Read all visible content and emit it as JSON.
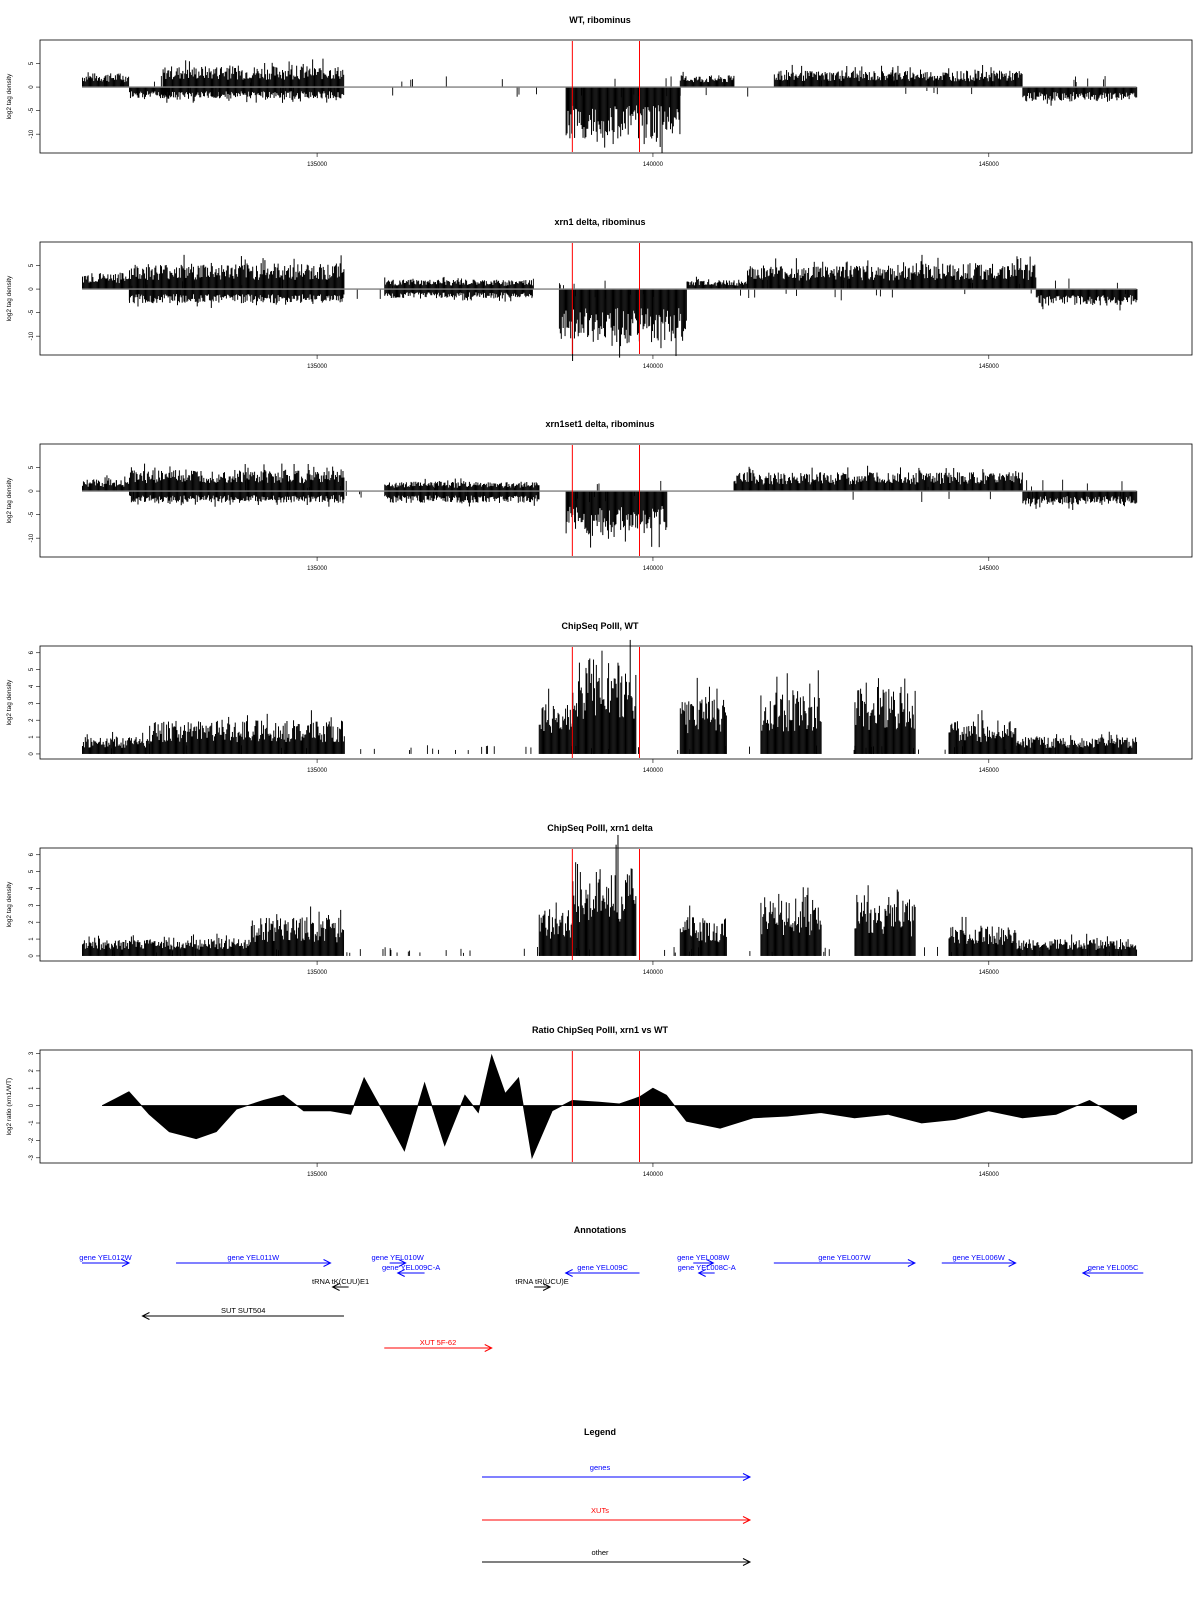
{
  "chart_data": [
    {
      "type": "bar",
      "title": "WT, ribominus",
      "ylabel": "log2 tag density",
      "xlim": [
        131500,
        147400
      ],
      "ylim": [
        -14,
        10
      ],
      "xticks": [
        "135000",
        "140000",
        "145000"
      ],
      "yticks": [
        "-10",
        "-5",
        "0",
        "5"
      ],
      "markers": [
        138800,
        139800
      ],
      "regions": [
        {
          "from": 131500,
          "to": 132200,
          "sign": "+",
          "amp": 3
        },
        {
          "from": 132200,
          "to": 132800,
          "sign": "-",
          "amp": 2.5
        },
        {
          "from": 132700,
          "to": 135400,
          "sign": "+",
          "amp": 4.5
        },
        {
          "from": 132700,
          "to": 135400,
          "sign": "-",
          "amp": 2.5
        },
        {
          "from": 138700,
          "to": 140400,
          "sign": "-",
          "amp": 11
        },
        {
          "from": 140400,
          "to": 141200,
          "sign": "+",
          "amp": 2.5
        },
        {
          "from": 141800,
          "to": 143600,
          "sign": "+",
          "amp": 3.5
        },
        {
          "from": 143500,
          "to": 145500,
          "sign": "+",
          "amp": 3.5
        },
        {
          "from": 145500,
          "to": 147200,
          "sign": "-",
          "amp": 3
        }
      ]
    },
    {
      "type": "bar",
      "title": "xrn1 delta, ribominus",
      "ylabel": "log2 tag density",
      "xlim": [
        131500,
        147400
      ],
      "ylim": [
        -14,
        10
      ],
      "xticks": [
        "135000",
        "140000",
        "145000"
      ],
      "yticks": [
        "-10",
        "-5",
        "0",
        "5"
      ],
      "markers": [
        138800,
        139800
      ],
      "regions": [
        {
          "from": 131500,
          "to": 132200,
          "sign": "+",
          "amp": 3.5
        },
        {
          "from": 132200,
          "to": 135400,
          "sign": "+",
          "amp": 5.5
        },
        {
          "from": 132200,
          "to": 135400,
          "sign": "-",
          "amp": 3
        },
        {
          "from": 136000,
          "to": 138200,
          "sign": "+",
          "amp": 2
        },
        {
          "from": 136000,
          "to": 138200,
          "sign": "-",
          "amp": 2
        },
        {
          "from": 138600,
          "to": 140500,
          "sign": "-",
          "amp": 11.5
        },
        {
          "from": 140500,
          "to": 141400,
          "sign": "+",
          "amp": 2
        },
        {
          "from": 141400,
          "to": 143900,
          "sign": "+",
          "amp": 5
        },
        {
          "from": 143900,
          "to": 145700,
          "sign": "+",
          "amp": 5.5
        },
        {
          "from": 145700,
          "to": 147200,
          "sign": "-",
          "amp": 3.5
        }
      ]
    },
    {
      "type": "bar",
      "title": "xrn1set1 delta, ribominus",
      "ylabel": "log2 tag density",
      "xlim": [
        131500,
        147400
      ],
      "ylim": [
        -14,
        10
      ],
      "xticks": [
        "135000",
        "140000",
        "145000"
      ],
      "yticks": [
        "-10",
        "-5",
        "0",
        "5"
      ],
      "markers": [
        138800,
        139800
      ],
      "regions": [
        {
          "from": 131500,
          "to": 132200,
          "sign": "+",
          "amp": 2.5
        },
        {
          "from": 132200,
          "to": 135400,
          "sign": "+",
          "amp": 4.5
        },
        {
          "from": 132200,
          "to": 135400,
          "sign": "-",
          "amp": 2.5
        },
        {
          "from": 136000,
          "to": 138300,
          "sign": "+",
          "amp": 2
        },
        {
          "from": 136000,
          "to": 138300,
          "sign": "-",
          "amp": 2.5
        },
        {
          "from": 138700,
          "to": 140200,
          "sign": "-",
          "amp": 9
        },
        {
          "from": 141200,
          "to": 143700,
          "sign": "+",
          "amp": 4
        },
        {
          "from": 143700,
          "to": 145500,
          "sign": "+",
          "amp": 4
        },
        {
          "from": 145500,
          "to": 147200,
          "sign": "-",
          "amp": 3
        }
      ]
    },
    {
      "type": "bar",
      "title": "ChipSeq PolII, WT",
      "ylabel": "log2 tag density",
      "xlim": [
        131500,
        147400
      ],
      "ylim": [
        -0.3,
        6.4
      ],
      "xticks": [
        "135000",
        "140000",
        "145000"
      ],
      "yticks": [
        "0",
        "1",
        "2",
        "3",
        "4",
        "5",
        "6"
      ],
      "markers": [
        138800,
        139800
      ],
      "regions": [
        {
          "from": 131500,
          "to": 132500,
          "amp": 1
        },
        {
          "from": 132500,
          "to": 135400,
          "amp": 2
        },
        {
          "from": 138300,
          "to": 138800,
          "amp": 3
        },
        {
          "from": 138800,
          "to": 139750,
          "amp": 5.8
        },
        {
          "from": 140400,
          "to": 141100,
          "amp": 3.5
        },
        {
          "from": 141600,
          "to": 142500,
          "amp": 3.8
        },
        {
          "from": 143000,
          "to": 143900,
          "amp": 4
        },
        {
          "from": 144400,
          "to": 145400,
          "amp": 2
        },
        {
          "from": 145400,
          "to": 147200,
          "amp": 1
        }
      ]
    },
    {
      "type": "bar",
      "title": "ChipSeq PolII, xrn1 delta",
      "ylabel": "log2 tag density",
      "xlim": [
        131500,
        147400
      ],
      "ylim": [
        -0.3,
        6.4
      ],
      "xticks": [
        "135000",
        "140000",
        "145000"
      ],
      "yticks": [
        "0",
        "1",
        "2",
        "3",
        "4",
        "5",
        "6"
      ],
      "markers": [
        138800,
        139800
      ],
      "regions": [
        {
          "from": 131500,
          "to": 134000,
          "amp": 1
        },
        {
          "from": 134000,
          "to": 135400,
          "amp": 2.3
        },
        {
          "from": 138300,
          "to": 138800,
          "amp": 2.8
        },
        {
          "from": 138800,
          "to": 139750,
          "amp": 5.6
        },
        {
          "from": 140400,
          "to": 141100,
          "amp": 2.3
        },
        {
          "from": 141600,
          "to": 142500,
          "amp": 3.5
        },
        {
          "from": 143000,
          "to": 143900,
          "amp": 3.3
        },
        {
          "from": 144400,
          "to": 145400,
          "amp": 1.8
        },
        {
          "from": 145400,
          "to": 147200,
          "amp": 1
        }
      ]
    },
    {
      "type": "area",
      "title": "Ratio ChipSeq PolII, xrn1 vs WT",
      "ylabel": "log2 ratio (xrn1/WT)",
      "xlim": [
        131500,
        147400
      ],
      "ylim": [
        -3.3,
        3.2
      ],
      "xticks": [
        "135000",
        "140000",
        "145000"
      ],
      "yticks": [
        "-3",
        "-2",
        "-1",
        "0",
        "1",
        "2",
        "3"
      ],
      "markers": [
        138800,
        139800
      ],
      "x": [
        131800,
        132000,
        132200,
        132500,
        132800,
        133200,
        133500,
        133800,
        134200,
        134500,
        134800,
        135200,
        135500,
        135700,
        136000,
        136300,
        136600,
        136900,
        137200,
        137400,
        137600,
        137800,
        138000,
        138200,
        138500,
        138800,
        139200,
        139500,
        139800,
        140000,
        140200,
        140500,
        141000,
        141500,
        142000,
        142500,
        143000,
        143500,
        144000,
        144500,
        145000,
        145500,
        146000,
        146500,
        147000,
        147200
      ],
      "y": [
        0,
        0.4,
        0.8,
        -0.5,
        -1.5,
        -1.9,
        -1.5,
        -0.2,
        0.3,
        0.6,
        -0.3,
        -0.3,
        -0.5,
        1.6,
        -0.5,
        -2.6,
        1.3,
        -2.3,
        0.6,
        -0.4,
        2.9,
        0.7,
        1.6,
        -3.0,
        -0.3,
        0.3,
        0.2,
        0.1,
        0.5,
        1.0,
        0.6,
        -0.9,
        -1.3,
        -0.7,
        -0.6,
        -0.4,
        -0.7,
        -0.5,
        -1.0,
        -0.8,
        -0.3,
        -0.7,
        -0.5,
        0.3,
        -0.8,
        -0.4
      ]
    }
  ],
  "annotations": {
    "title": "Annotations",
    "items": [
      {
        "label": "gene YEL012W",
        "from": 131500,
        "to": 132200,
        "row": 0,
        "kind": "gene",
        "dir": "+"
      },
      {
        "label": "gene YEL011W",
        "from": 132900,
        "to": 135200,
        "row": 0,
        "kind": "gene",
        "dir": "+"
      },
      {
        "label": "gene YEL010W",
        "from": 136100,
        "to": 136300,
        "row": 0,
        "kind": "gene",
        "dir": "+"
      },
      {
        "label": "gene YEL009C-A",
        "from": 136200,
        "to": 136600,
        "row": 1,
        "kind": "gene",
        "dir": "-"
      },
      {
        "label": "gene YEL009C",
        "from": 138700,
        "to": 139800,
        "row": 1,
        "kind": "gene",
        "dir": "-"
      },
      {
        "label": "gene YEL008W",
        "from": 140600,
        "to": 140900,
        "row": 0,
        "kind": "gene",
        "dir": "+"
      },
      {
        "label": "gene YEL008C-A",
        "from": 140700,
        "to": 140900,
        "row": 1,
        "kind": "gene",
        "dir": "-"
      },
      {
        "label": "gene YEL007W",
        "from": 141800,
        "to": 143900,
        "row": 0,
        "kind": "gene",
        "dir": "+"
      },
      {
        "label": "gene YEL006W",
        "from": 144300,
        "to": 145400,
        "row": 0,
        "kind": "gene",
        "dir": "+"
      },
      {
        "label": "gene YEL005C",
        "from": 146400,
        "to": 147300,
        "row": 1,
        "kind": "gene",
        "dir": "-"
      },
      {
        "label": "tRNA tK(CUU)E1",
        "from": 135300,
        "to": 135400,
        "row": 2,
        "kind": "other",
        "dir": "-"
      },
      {
        "label": "tRNA tR(UCU)E",
        "from": 138300,
        "to": 138400,
        "row": 2,
        "kind": "other",
        "dir": "+"
      },
      {
        "label": "SUT SUT504",
        "from": 132400,
        "to": 135400,
        "row": 3,
        "kind": "other",
        "dir": "-"
      },
      {
        "label": "XUT 5F-62",
        "from": 136000,
        "to": 137600,
        "row": 5,
        "kind": "xut",
        "dir": "+"
      }
    ]
  },
  "legend": {
    "title": "Legend",
    "items": [
      {
        "label": "genes",
        "kind": "gene"
      },
      {
        "label": "XUTs",
        "kind": "xut"
      },
      {
        "label": "other",
        "kind": "other"
      }
    ]
  },
  "colors": {
    "gene": "#0000ff",
    "xut": "#ff0000",
    "other": "#000000",
    "marker": "#ff0000",
    "baseline": "#808080"
  }
}
